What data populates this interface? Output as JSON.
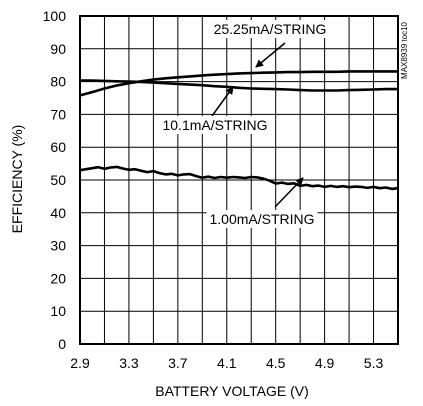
{
  "chart_data": {
    "type": "line",
    "xlabel": "BATTERY VOLTAGE (V)",
    "ylabel": "EFFICIENCY (%)",
    "xlim": [
      2.9,
      5.5
    ],
    "ylim": [
      0,
      100
    ],
    "xticks": [
      "2.9",
      "3.3",
      "3.7",
      "4.1",
      "4.5",
      "4.9",
      "5.3"
    ],
    "yticks": [
      "0",
      "10",
      "20",
      "30",
      "40",
      "50",
      "60",
      "70",
      "80",
      "90",
      "100"
    ],
    "grid": true,
    "figure_id": "MAX8939 toc10",
    "series": [
      {
        "name": "25.25mA/STRING",
        "x": [
          2.9,
          3.0,
          3.1,
          3.2,
          3.3,
          3.4,
          3.5,
          3.6,
          3.7,
          3.8,
          3.9,
          4.0,
          4.1,
          4.2,
          4.3,
          4.4,
          4.5,
          4.6,
          4.7,
          4.8,
          4.9,
          5.0,
          5.1,
          5.2,
          5.3,
          5.4,
          5.5
        ],
        "y": [
          75.8,
          76.8,
          77.9,
          78.8,
          79.5,
          80.1,
          80.6,
          81.0,
          81.3,
          81.6,
          81.9,
          82.1,
          82.3,
          82.5,
          82.6,
          82.7,
          82.8,
          82.9,
          82.9,
          83.0,
          83.0,
          83.0,
          83.1,
          83.1,
          83.1,
          83.1,
          83.1
        ]
      },
      {
        "name": "10.1mA/STRING",
        "x": [
          2.9,
          3.0,
          3.1,
          3.2,
          3.3,
          3.4,
          3.5,
          3.6,
          3.7,
          3.8,
          3.9,
          4.0,
          4.1,
          4.2,
          4.3,
          4.4,
          4.5,
          4.6,
          4.7,
          4.8,
          4.9,
          5.0,
          5.1,
          5.2,
          5.3,
          5.4,
          5.5
        ],
        "y": [
          80.3,
          80.3,
          80.2,
          80.1,
          80.0,
          79.9,
          79.7,
          79.5,
          79.3,
          79.1,
          78.9,
          78.6,
          78.4,
          78.1,
          77.9,
          77.8,
          77.7,
          77.6,
          77.4,
          77.3,
          77.3,
          77.3,
          77.4,
          77.5,
          77.6,
          77.7,
          77.7
        ]
      },
      {
        "name": "1.00mA/STRING",
        "x": [
          2.9,
          2.95,
          3.0,
          3.05,
          3.1,
          3.15,
          3.2,
          3.25,
          3.3,
          3.35,
          3.4,
          3.45,
          3.5,
          3.55,
          3.6,
          3.65,
          3.7,
          3.75,
          3.8,
          3.85,
          3.9,
          3.95,
          4.0,
          4.05,
          4.1,
          4.15,
          4.2,
          4.25,
          4.3,
          4.35,
          4.4,
          4.45,
          4.5,
          4.55,
          4.6,
          4.65,
          4.7,
          4.75,
          4.8,
          4.85,
          4.9,
          4.95,
          5.0,
          5.05,
          5.1,
          5.15,
          5.2,
          5.25,
          5.3,
          5.35,
          5.4,
          5.45,
          5.5
        ],
        "y": [
          53.0,
          53.3,
          53.6,
          53.9,
          53.4,
          53.8,
          54.0,
          53.5,
          53.1,
          53.3,
          52.8,
          52.4,
          52.7,
          52.1,
          51.7,
          51.9,
          51.4,
          51.7,
          51.8,
          51.2,
          50.7,
          51.0,
          50.6,
          50.9,
          50.7,
          50.9,
          50.8,
          50.6,
          50.9,
          50.8,
          50.4,
          49.8,
          48.9,
          49.2,
          48.8,
          49.0,
          48.2,
          48.5,
          48.1,
          48.3,
          47.9,
          48.2,
          47.9,
          48.1,
          47.8,
          48.0,
          47.9,
          47.6,
          47.9,
          47.5,
          47.7,
          47.3,
          47.5
        ]
      }
    ],
    "annotations": [
      {
        "text": "25.25mA/STRING",
        "series": 0
      },
      {
        "text": "10.1mA/STRING",
        "series": 1
      },
      {
        "text": "1.00mA/STRING",
        "series": 2
      }
    ]
  }
}
